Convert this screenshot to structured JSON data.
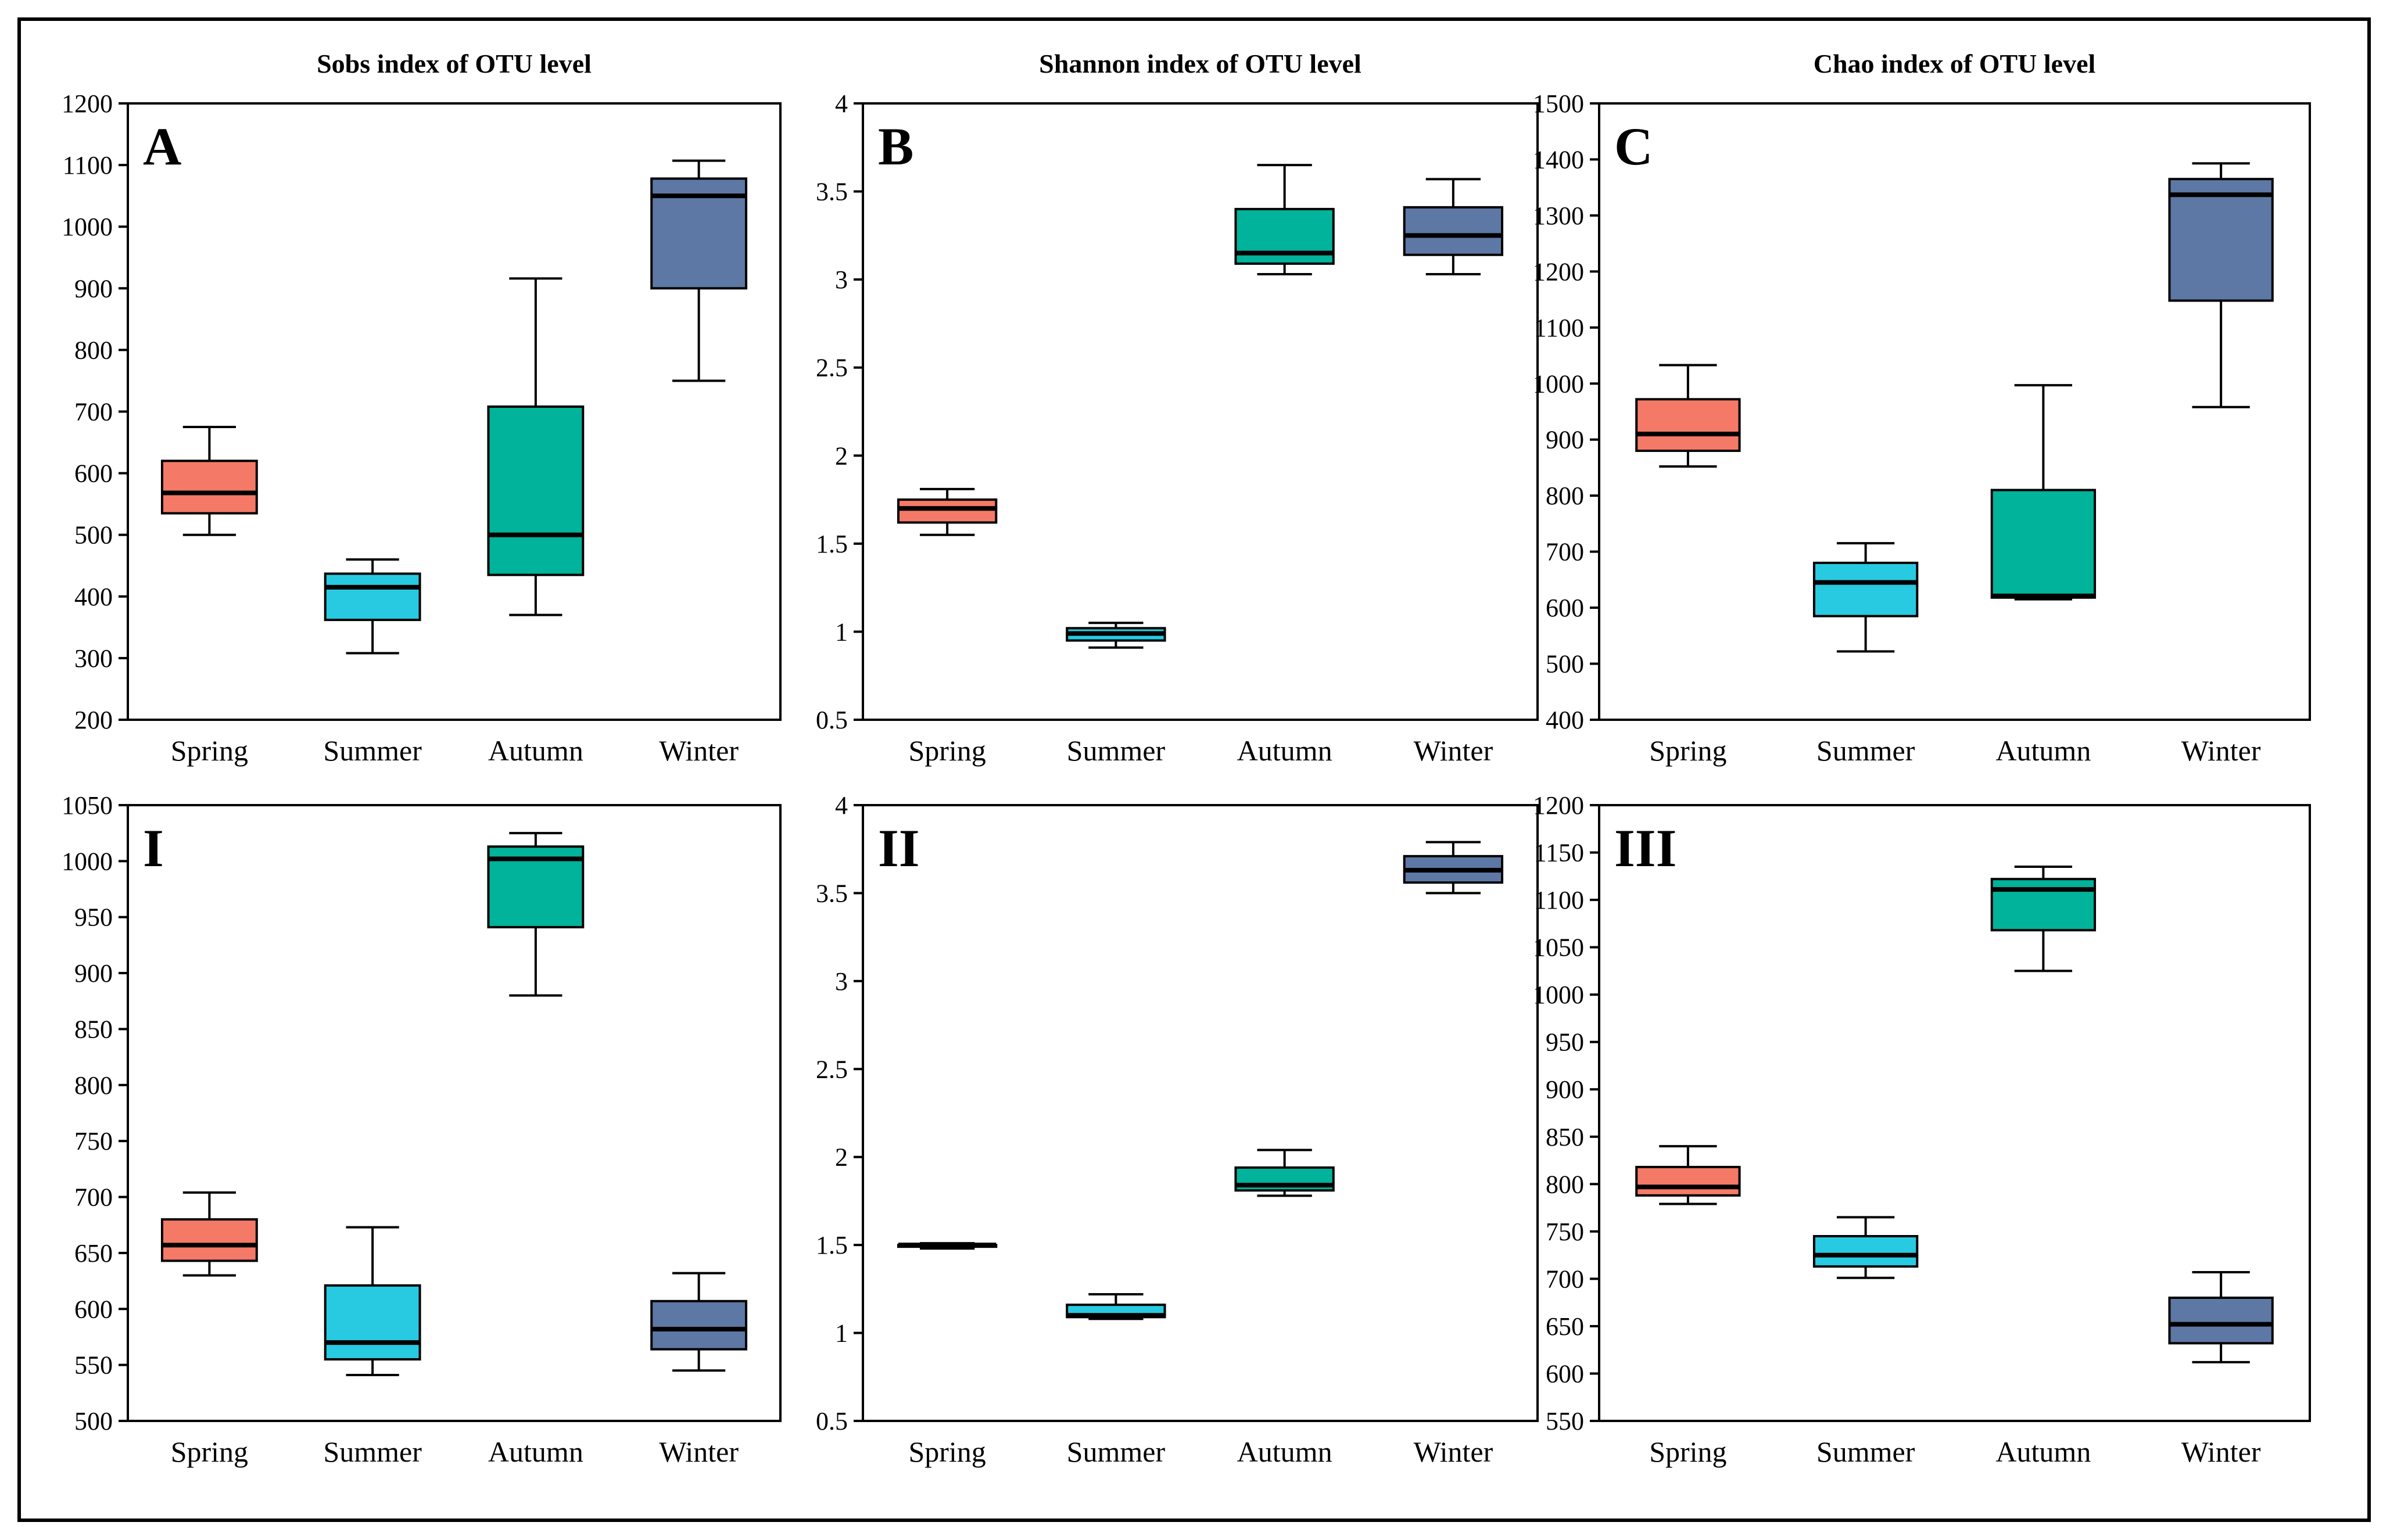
{
  "chart_data": [
    {
      "id": "A",
      "type": "box",
      "letter": "A",
      "title": "Sobs index of OTU level",
      "categories": [
        "Spring",
        "Summer",
        "Autumn",
        "Winter"
      ],
      "colors": [
        "#f47a67",
        "#27cae0",
        "#00b39a",
        "#5d78a4"
      ],
      "ylim": [
        200,
        1200
      ],
      "yticks": [
        200,
        300,
        400,
        500,
        600,
        700,
        800,
        900,
        1000,
        1100,
        1200
      ],
      "boxes": [
        {
          "min": 500,
          "q1": 535,
          "median": 568,
          "q3": 620,
          "max": 675
        },
        {
          "min": 308,
          "q1": 362,
          "median": 415,
          "q3": 437,
          "max": 460
        },
        {
          "min": 370,
          "q1": 435,
          "median": 500,
          "q3": 708,
          "max": 916
        },
        {
          "min": 750,
          "q1": 900,
          "median": 1050,
          "q3": 1078,
          "max": 1107
        }
      ]
    },
    {
      "id": "B",
      "type": "box",
      "letter": "B",
      "title": "Shannon index of OTU level",
      "categories": [
        "Spring",
        "Summer",
        "Autumn",
        "Winter"
      ],
      "colors": [
        "#f47a67",
        "#27cae0",
        "#00b39a",
        "#5d78a4"
      ],
      "ylim": [
        0.5,
        4
      ],
      "yticks": [
        0.5,
        1,
        1.5,
        2,
        2.5,
        3,
        3.5,
        4
      ],
      "boxes": [
        {
          "min": 1.55,
          "q1": 1.62,
          "median": 1.7,
          "q3": 1.75,
          "max": 1.81
        },
        {
          "min": 0.91,
          "q1": 0.95,
          "median": 0.99,
          "q3": 1.02,
          "max": 1.05
        },
        {
          "min": 3.03,
          "q1": 3.09,
          "median": 3.15,
          "q3": 3.4,
          "max": 3.65
        },
        {
          "min": 3.03,
          "q1": 3.14,
          "median": 3.25,
          "q3": 3.41,
          "max": 3.57
        }
      ]
    },
    {
      "id": "C",
      "type": "box",
      "letter": "C",
      "title": "Chao index of OTU level",
      "categories": [
        "Spring",
        "Summer",
        "Autumn",
        "Winter"
      ],
      "colors": [
        "#f47a67",
        "#27cae0",
        "#00b39a",
        "#5d78a4"
      ],
      "ylim": [
        400,
        1500
      ],
      "yticks": [
        400,
        500,
        600,
        700,
        800,
        900,
        1000,
        1100,
        1200,
        1300,
        1400,
        1500
      ],
      "boxes": [
        {
          "min": 852,
          "q1": 880,
          "median": 910,
          "q3": 972,
          "max": 1033
        },
        {
          "min": 522,
          "q1": 585,
          "median": 645,
          "q3": 680,
          "max": 715
        },
        {
          "min": 615,
          "q1": 618,
          "median": 621,
          "q3": 810,
          "max": 997
        },
        {
          "min": 958,
          "q1": 1148,
          "median": 1337,
          "q3": 1365,
          "max": 1393
        }
      ]
    },
    {
      "id": "I",
      "type": "box",
      "letter": "I",
      "title": "",
      "categories": [
        "Spring",
        "Summer",
        "Autumn",
        "Winter"
      ],
      "colors": [
        "#f47a67",
        "#27cae0",
        "#00b39a",
        "#5d78a4"
      ],
      "ylim": [
        500,
        1050
      ],
      "yticks": [
        500,
        550,
        600,
        650,
        700,
        750,
        800,
        850,
        900,
        950,
        1000,
        1050
      ],
      "boxes": [
        {
          "min": 630,
          "q1": 643,
          "median": 657,
          "q3": 680,
          "max": 704
        },
        {
          "min": 541,
          "q1": 555,
          "median": 570,
          "q3": 621,
          "max": 673
        },
        {
          "min": 880,
          "q1": 941,
          "median": 1002,
          "q3": 1013,
          "max": 1025
        },
        {
          "min": 545,
          "q1": 564,
          "median": 582,
          "q3": 607,
          "max": 632
        }
      ]
    },
    {
      "id": "II",
      "type": "box",
      "letter": "II",
      "title": "",
      "categories": [
        "Spring",
        "Summer",
        "Autumn",
        "Winter"
      ],
      "colors": [
        "#f47a67",
        "#27cae0",
        "#00b39a",
        "#5d78a4"
      ],
      "ylim": [
        0.5,
        4
      ],
      "yticks": [
        0.5,
        1,
        1.5,
        2,
        2.5,
        3,
        3.5,
        4
      ],
      "boxes": [
        {
          "min": 1.48,
          "q1": 1.49,
          "median": 1.5,
          "q3": 1.5,
          "max": 1.51
        },
        {
          "min": 1.08,
          "q1": 1.09,
          "median": 1.1,
          "q3": 1.16,
          "max": 1.22
        },
        {
          "min": 1.78,
          "q1": 1.81,
          "median": 1.84,
          "q3": 1.94,
          "max": 2.04
        },
        {
          "min": 3.5,
          "q1": 3.56,
          "median": 3.63,
          "q3": 3.71,
          "max": 3.79
        }
      ]
    },
    {
      "id": "III",
      "type": "box",
      "letter": "III",
      "title": "",
      "categories": [
        "Spring",
        "Summer",
        "Autumn",
        "Winter"
      ],
      "colors": [
        "#f47a67",
        "#27cae0",
        "#00b39a",
        "#5d78a4"
      ],
      "ylim": [
        550,
        1200
      ],
      "yticks": [
        550,
        600,
        650,
        700,
        750,
        800,
        850,
        900,
        950,
        1000,
        1050,
        1100,
        1150,
        1200
      ],
      "boxes": [
        {
          "min": 779,
          "q1": 788,
          "median": 797,
          "q3": 818,
          "max": 840
        },
        {
          "min": 701,
          "q1": 713,
          "median": 725,
          "q3": 745,
          "max": 765
        },
        {
          "min": 1025,
          "q1": 1068,
          "median": 1111,
          "q3": 1122,
          "max": 1135
        },
        {
          "min": 612,
          "q1": 632,
          "median": 652,
          "q3": 680,
          "max": 707
        }
      ]
    }
  ]
}
